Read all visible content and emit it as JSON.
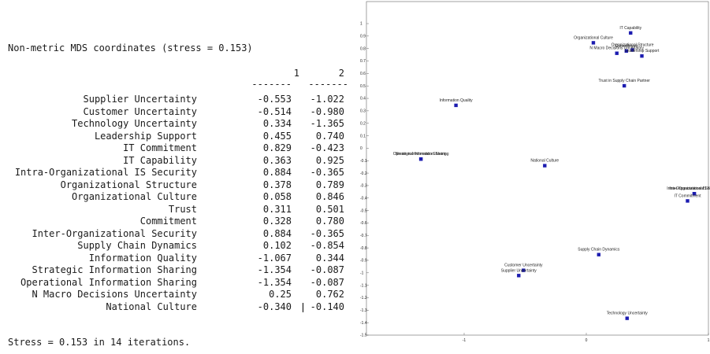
{
  "output": {
    "title": "Non-metric MDS coordinates (stress = 0.153)",
    "col1": "1",
    "col2": "2",
    "dashes": "-------",
    "rows": [
      {
        "label": "Supplier Uncertainty",
        "d1": "-0.553",
        "d2": "-1.022"
      },
      {
        "label": "Customer Uncertainty",
        "d1": "-0.514",
        "d2": "-0.980"
      },
      {
        "label": "Technology Uncertainty",
        "d1": "0.334",
        "d2": "-1.365"
      },
      {
        "label": "Leadership Support",
        "d1": "0.455",
        "d2": "0.740"
      },
      {
        "label": "IT Commitment",
        "d1": "0.829",
        "d2": "-0.423"
      },
      {
        "label": "IT Capability",
        "d1": "0.363",
        "d2": "0.925"
      },
      {
        "label": "Intra-Organizational IS Security",
        "d1": "0.884",
        "d2": "-0.365"
      },
      {
        "label": "Organizational Structure",
        "d1": "0.378",
        "d2": "0.789"
      },
      {
        "label": "Organizational Culture",
        "d1": "0.058",
        "d2": "0.846"
      },
      {
        "label": "Trust",
        "d1": "0.311",
        "d2": "0.501"
      },
      {
        "label": "Commitment",
        "d1": "0.328",
        "d2": "0.780"
      },
      {
        "label": "Inter-Organizational Security",
        "d1": "0.884",
        "d2": "-0.365"
      },
      {
        "label": "Supply Chain Dynamics",
        "d1": "0.102",
        "d2": "-0.854"
      },
      {
        "label": "Information Quality",
        "d1": "-1.067",
        "d2": "0.344"
      },
      {
        "label": "Strategic Information Sharing",
        "d1": "-1.354",
        "d2": "-0.087"
      },
      {
        "label": "Operational Information Sharing",
        "d1": "-1.354",
        "d2": "-0.087"
      },
      {
        "label": "N Macro Decisions Uncertainty",
        "d1": "0.25",
        "d2": "0.762"
      },
      {
        "label": "National Culture",
        "d1": "-0.340",
        "d2": "-0.140"
      }
    ],
    "stress_line": "Stress = 0.153 in 14 iterations."
  },
  "chart_data": {
    "type": "scatter",
    "xlim": [
      -1.8,
      1.0
    ],
    "ylim": [
      -1.5,
      1.0
    ],
    "x_ticks": [
      "-1",
      "0",
      "1"
    ],
    "y_ticks": [
      "1",
      "0.9",
      "0.8",
      "0.7",
      "0.6",
      "0.5",
      "0.4",
      "0.3",
      "0.2",
      "0.1",
      "0",
      "-0.1",
      "-0.2",
      "-0.3",
      "-0.4",
      "-0.5",
      "-0.6",
      "-0.7",
      "-0.8",
      "-0.9",
      "-1",
      "-1.1",
      "-1.2",
      "-1.3",
      "-1.4",
      "-1.5"
    ],
    "marker_color": "#1c1cb0",
    "points": [
      {
        "label": "IT Capability",
        "x": 0.363,
        "y": 0.925
      },
      {
        "label": "Organizational Culture",
        "x": 0.058,
        "y": 0.846
      },
      {
        "label": "Organizational Structure",
        "x": 0.378,
        "y": 0.789
      },
      {
        "label": "Commitment",
        "x": 0.328,
        "y": 0.78
      },
      {
        "label": "N Macro Decisions Uncertainty",
        "x": 0.25,
        "y": 0.762
      },
      {
        "label": "Leadership Support",
        "x": 0.455,
        "y": 0.74
      },
      {
        "label": "Trust in Supply Chain Partner",
        "x": 0.311,
        "y": 0.501
      },
      {
        "label": "Information Quality",
        "x": -1.067,
        "y": 0.344
      },
      {
        "label": "Operational Information Sharing",
        "x": -1.354,
        "y": -0.087
      },
      {
        "label": "Strategic Information Sharing",
        "x": -1.354,
        "y": -0.087
      },
      {
        "label": "National Culture",
        "x": -0.34,
        "y": -0.14
      },
      {
        "label": "Inter-Organizational Security",
        "x": 0.884,
        "y": -0.365
      },
      {
        "label": "Intra-Organizational IS Security",
        "x": 0.884,
        "y": -0.365
      },
      {
        "label": "IT Commitment",
        "x": 0.829,
        "y": -0.423
      },
      {
        "label": "Supply Chain Dynamics",
        "x": 0.102,
        "y": -0.854
      },
      {
        "label": "Customer Uncertainty",
        "x": -0.514,
        "y": -0.98
      },
      {
        "label": "Supplier Uncertainty",
        "x": -0.553,
        "y": -1.022
      },
      {
        "label": "Technology Uncertainty",
        "x": 0.334,
        "y": -1.365
      }
    ]
  }
}
